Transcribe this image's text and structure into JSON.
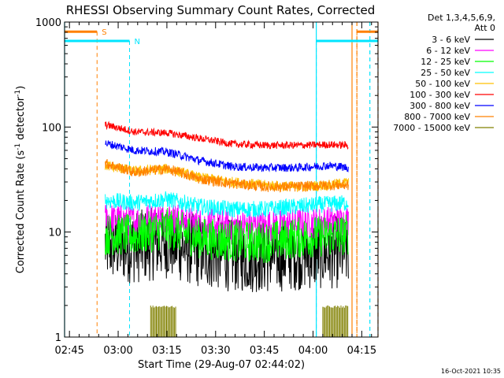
{
  "chart_data": {
    "type": "line",
    "title": "RHESSI Observing Summary Count Rates, Corrected",
    "xlabel": "Start Time (29-Aug-07 02:44:02)",
    "ylabel": "Corrected Count Rate (s⁻¹ detector⁻¹)",
    "ylabel_parts": {
      "base": "Corrected Count Rate (s",
      "sup1": "-1",
      "mid": " detector",
      "sup2": "-1",
      "end": ")"
    },
    "yscale": "log",
    "ylim": [
      1,
      1000
    ],
    "xlim_minutes": [
      -1.5,
      95
    ],
    "x_ticks": [
      {
        "m": 0,
        "label": "02:45"
      },
      {
        "m": 15,
        "label": "03:00"
      },
      {
        "m": 30,
        "label": "03:15"
      },
      {
        "m": 45,
        "label": "03:30"
      },
      {
        "m": 60,
        "label": "03:45"
      },
      {
        "m": 75,
        "label": "04:00"
      },
      {
        "m": 90,
        "label": "04:15"
      }
    ],
    "y_ticks": [
      {
        "v": 1,
        "label": "1"
      },
      {
        "v": 10,
        "label": "10"
      },
      {
        "v": 100,
        "label": "100"
      },
      {
        "v": 1000,
        "label": "1000"
      }
    ],
    "legend": {
      "position": "right",
      "header": [
        "Det 1,3,4,5,6,9,",
        "Att 0"
      ],
      "entries": [
        {
          "label": "3 - 6 keV",
          "color": "#000000"
        },
        {
          "label": "6 - 12 keV",
          "color": "#ff00ff"
        },
        {
          "label": "12 - 25 keV",
          "color": "#00ff00"
        },
        {
          "label": "25 - 50 keV",
          "color": "#00ffff"
        },
        {
          "label": "50 - 100 keV",
          "color": "#ffc000"
        },
        {
          "label": "100 - 300 keV",
          "color": "#ff0000"
        },
        {
          "label": "300 - 800 keV",
          "color": "#0000ff"
        },
        {
          "label": "800 - 7000 keV",
          "color": "#ff8000"
        },
        {
          "label": "7000 - 15000 keV",
          "color": "#808000"
        }
      ]
    },
    "series": [
      {
        "name": "3 - 6 keV",
        "color": "#000000",
        "x": [
          11,
          20,
          30,
          40,
          50,
          60,
          70,
          80,
          86
        ],
        "y": [
          7.5,
          7.2,
          8.0,
          6.5,
          6.0,
          5.8,
          6.2,
          6.4,
          6.5
        ],
        "noise": 0.35
      },
      {
        "name": "6 - 12 keV",
        "color": "#ff00ff",
        "x": [
          11,
          20,
          30,
          40,
          50,
          60,
          70,
          80,
          86
        ],
        "y": [
          13.5,
          12.8,
          14.0,
          12.0,
          11.5,
          11.5,
          12.0,
          12.5,
          12.8
        ],
        "noise": 0.15
      },
      {
        "name": "12 - 25 keV",
        "color": "#00ff00",
        "x": [
          11,
          20,
          30,
          40,
          50,
          60,
          70,
          80,
          86
        ],
        "y": [
          9.5,
          9.3,
          10.8,
          8.8,
          8.2,
          8.0,
          8.8,
          9.2,
          9.5
        ],
        "noise": 0.2
      },
      {
        "name": "25 - 50 keV",
        "color": "#00ffff",
        "x": [
          11,
          20,
          30,
          40,
          50,
          60,
          70,
          80,
          86
        ],
        "y": [
          20,
          19,
          20.5,
          17.5,
          16.5,
          16.5,
          17.5,
          18.5,
          19
        ],
        "noise": 0.08
      },
      {
        "name": "50 - 100 keV",
        "color": "#ffc000",
        "x": [
          11,
          20,
          30,
          40,
          50,
          60,
          70,
          80,
          86
        ],
        "y": [
          43,
          38,
          40,
          33,
          30,
          28,
          27,
          28,
          30
        ],
        "noise": 0.05
      },
      {
        "name": "100 - 300 keV",
        "color": "#ff0000",
        "x": [
          11,
          20,
          30,
          40,
          50,
          60,
          70,
          80,
          86
        ],
        "y": [
          105,
          90,
          88,
          78,
          69,
          67,
          67,
          68,
          67
        ],
        "noise": 0.035
      },
      {
        "name": "300 - 800 keV",
        "color": "#0000ff",
        "x": [
          11,
          20,
          30,
          40,
          50,
          60,
          70,
          80,
          86
        ],
        "y": [
          70,
          60,
          58,
          48,
          42,
          41,
          41,
          43,
          41
        ],
        "noise": 0.04
      },
      {
        "name": "800 - 7000 keV",
        "color": "#ff8000",
        "x": [
          11,
          20,
          30,
          40,
          50,
          60,
          70,
          80,
          86
        ],
        "y": [
          45,
          37,
          40,
          32,
          29,
          27,
          27,
          28,
          28
        ],
        "noise": 0.05
      },
      {
        "name": "7000 - 15000 keV",
        "color": "#808000",
        "bursts": [
          [
            25,
            33,
            2.0
          ],
          [
            78,
            86,
            2.0
          ]
        ]
      }
    ],
    "flags": [
      {
        "label": "S",
        "color": "#ff8000",
        "bars_minutes": [
          [
            -1.5,
            8.5
          ],
          [
            88.5,
            95
          ]
        ],
        "lines_minutes": [
          8.5,
          88.5
        ],
        "level": 810
      },
      {
        "label": "N",
        "color": "#00e5ff",
        "bars_minutes": [
          [
            -1.5,
            18.5
          ],
          [
            76,
            95
          ]
        ],
        "lines_minutes": [
          18.5,
          76
        ],
        "level": 660
      }
    ],
    "vertical_markers_minutes": [
      {
        "m": 76,
        "color": "#00e5ff",
        "style": "solid"
      },
      {
        "m": 87,
        "color": "#ff8000",
        "style": "solid"
      },
      {
        "m": 88.5,
        "color": "#ff8000",
        "style": "dashed"
      },
      {
        "m": 95,
        "color": "#ff8000",
        "style": "dashed"
      },
      {
        "m": 92.5,
        "color": "#00e5ff",
        "style": "dashed"
      },
      {
        "m": -1.5,
        "color": "#00e5ff",
        "style": "solid"
      }
    ],
    "footer_stamp": "16-Oct-2021 10:35"
  }
}
